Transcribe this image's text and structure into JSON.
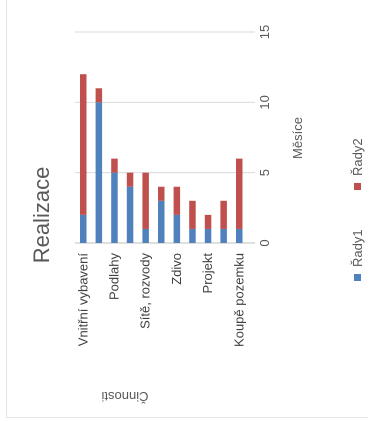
{
  "chart_data": {
    "type": "bar",
    "orientation": "horizontal",
    "stacked": true,
    "title": "Realizace",
    "xlabel": "Činnosti",
    "ylabel": "Měsíce",
    "ylim": [
      0,
      15
    ],
    "yticks": [
      0,
      5,
      10,
      15
    ],
    "grid": true,
    "legend_position": "right",
    "categories": [
      "Vnitřní vybavení",
      "",
      "Podlahy",
      "",
      "Sítě, rozvody",
      "",
      "Zdivo",
      "",
      "Projekt",
      "",
      "Koupě pozemku"
    ],
    "series": [
      {
        "name": "Řady1",
        "color": "#4f81bd",
        "values": [
          2,
          10,
          5,
          4,
          1,
          3,
          2,
          1,
          1,
          1,
          1
        ]
      },
      {
        "name": "Řady2",
        "color": "#c0504d",
        "values": [
          10,
          1,
          1,
          1,
          4,
          1,
          2,
          2,
          1,
          2,
          5
        ]
      }
    ]
  }
}
